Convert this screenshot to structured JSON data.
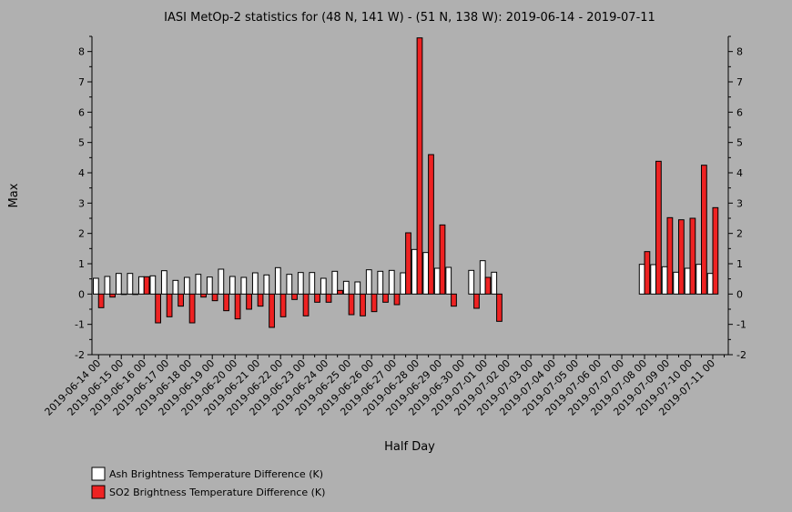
{
  "chart_data": {
    "type": "bar",
    "title": "IASI MetOp-2 statistics for (48 N, 141 W) - (51 N, 138 W): 2019-06-14 - 2019-07-11",
    "xlabel": "Half Day",
    "ylabel": "Max",
    "ylim": [
      -2,
      8.5
    ],
    "yticks": [
      -2,
      -1,
      0,
      1,
      2,
      3,
      4,
      5,
      6,
      7,
      8
    ],
    "yticks_right": true,
    "grid": false,
    "legend_position": "bottom-left",
    "x_tick_labels": [
      "2019-06-14 00",
      "2019-06-15 00",
      "2019-06-16 00",
      "2019-06-17 00",
      "2019-06-18 00",
      "2019-06-19 00",
      "2019-06-20 00",
      "2019-06-21 00",
      "2019-06-22 00",
      "2019-06-23 00",
      "2019-06-24 00",
      "2019-06-25 00",
      "2019-06-26 00",
      "2019-06-27 00",
      "2019-06-28 00",
      "2019-06-29 00",
      "2019-06-30 00",
      "2019-07-01 00",
      "2019-07-02 00",
      "2019-07-03 00",
      "2019-07-04 00",
      "2019-07-05 00",
      "2019-07-06 00",
      "2019-07-07 00",
      "2019-07-08 00",
      "2019-07-09 00",
      "2019-07-10 00",
      "2019-07-11 00"
    ],
    "categories": [
      "2019-06-14 00",
      "2019-06-14 12",
      "2019-06-15 00",
      "2019-06-15 12",
      "2019-06-16 00",
      "2019-06-16 12",
      "2019-06-17 00",
      "2019-06-17 12",
      "2019-06-18 00",
      "2019-06-18 12",
      "2019-06-19 00",
      "2019-06-19 12",
      "2019-06-20 00",
      "2019-06-20 12",
      "2019-06-21 00",
      "2019-06-21 12",
      "2019-06-22 00",
      "2019-06-22 12",
      "2019-06-23 00",
      "2019-06-23 12",
      "2019-06-24 00",
      "2019-06-24 12",
      "2019-06-25 00",
      "2019-06-25 12",
      "2019-06-26 00",
      "2019-06-26 12",
      "2019-06-27 00",
      "2019-06-27 12",
      "2019-06-28 00",
      "2019-06-28 12",
      "2019-06-29 00",
      "2019-06-29 12",
      "2019-06-30 00",
      "2019-06-30 12",
      "2019-07-01 00",
      "2019-07-01 12",
      "2019-07-02 00",
      "2019-07-02 12",
      "2019-07-03 00",
      "2019-07-03 12",
      "2019-07-04 00",
      "2019-07-04 12",
      "2019-07-05 00",
      "2019-07-05 12",
      "2019-07-06 00",
      "2019-07-06 12",
      "2019-07-07 00",
      "2019-07-07 12",
      "2019-07-08 00",
      "2019-07-08 12",
      "2019-07-09 00",
      "2019-07-09 12",
      "2019-07-10 00",
      "2019-07-10 12",
      "2019-07-11 00",
      "2019-07-11 12"
    ],
    "series": [
      {
        "name": "Ash Brightness Temperature Difference (K)",
        "color": "#ffffff",
        "values": [
          0.52,
          0.58,
          0.68,
          0.68,
          0.57,
          0.6,
          0.77,
          0.45,
          0.55,
          0.65,
          0.56,
          0.82,
          0.58,
          0.55,
          0.7,
          0.63,
          0.87,
          0.65,
          0.71,
          0.71,
          0.52,
          0.75,
          0.42,
          0.4,
          0.8,
          0.75,
          0.78,
          0.7,
          1.47,
          1.37,
          0.85,
          0.88,
          null,
          0.78,
          1.1,
          0.72,
          null,
          null,
          null,
          null,
          null,
          null,
          null,
          null,
          null,
          null,
          null,
          null,
          0.98,
          0.97,
          0.9,
          0.72,
          0.85,
          0.98,
          0.68,
          null
        ]
      },
      {
        "name": "SO2 Brightness Temperature Difference (K)",
        "color": "#ee2222",
        "values": [
          -0.45,
          -0.1,
          0.0,
          0.0,
          0.57,
          -0.95,
          -0.75,
          -0.4,
          -0.95,
          -0.1,
          -0.22,
          -0.55,
          -0.82,
          -0.5,
          -0.4,
          -1.1,
          -0.75,
          -0.18,
          -0.72,
          -0.27,
          -0.27,
          0.12,
          -0.68,
          -0.72,
          -0.58,
          -0.27,
          -0.35,
          2.02,
          8.45,
          4.6,
          2.28,
          -0.4,
          null,
          -0.47,
          0.55,
          -0.9,
          null,
          null,
          null,
          null,
          null,
          null,
          null,
          null,
          null,
          null,
          null,
          null,
          1.4,
          4.38,
          2.52,
          2.45,
          2.5,
          4.25,
          2.85,
          null
        ]
      }
    ]
  }
}
